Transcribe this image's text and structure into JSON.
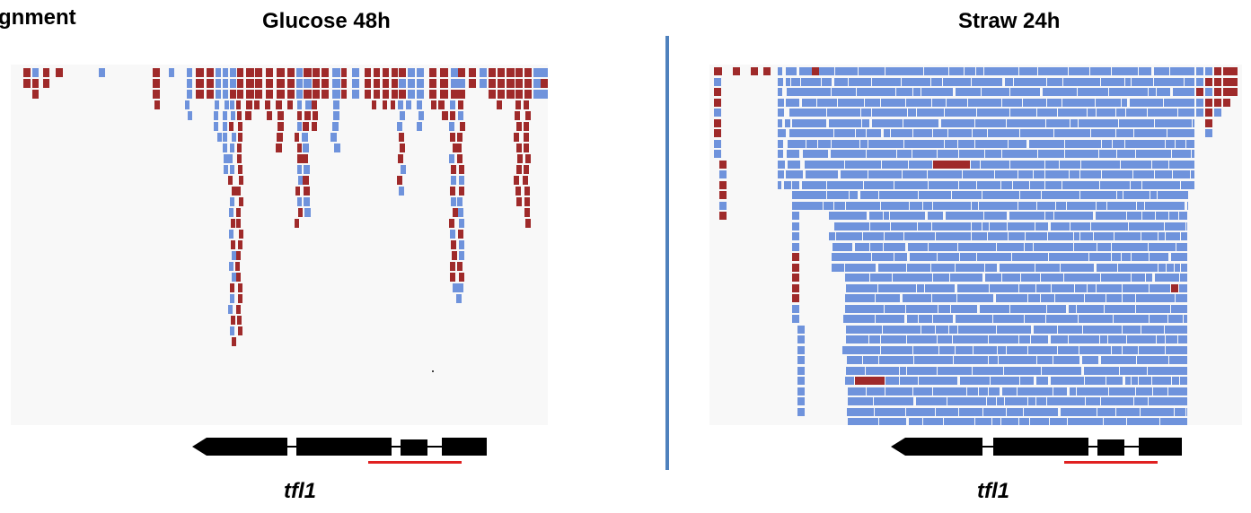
{
  "header": {
    "left_cut_label": "gnment",
    "left_title": "Glucose 48h",
    "right_title": "Straw 24h"
  },
  "gene": {
    "left_name": "tfl1",
    "right_name": "tfl1"
  },
  "colors": {
    "read_forward": "#6f93dc",
    "read_reverse": "#9f2a2a",
    "panel_bg": "#f8f8f8",
    "divider": "#4f81bd",
    "gene_model": "#000000",
    "region_marker": "#e02020"
  },
  "panels": {
    "left": {
      "condition": "Glucose 48h",
      "dominant_strand": "mixed",
      "coverage": "sparse"
    },
    "right": {
      "condition": "Straw 24h",
      "dominant_strand": "forward",
      "coverage": "dense"
    }
  }
}
